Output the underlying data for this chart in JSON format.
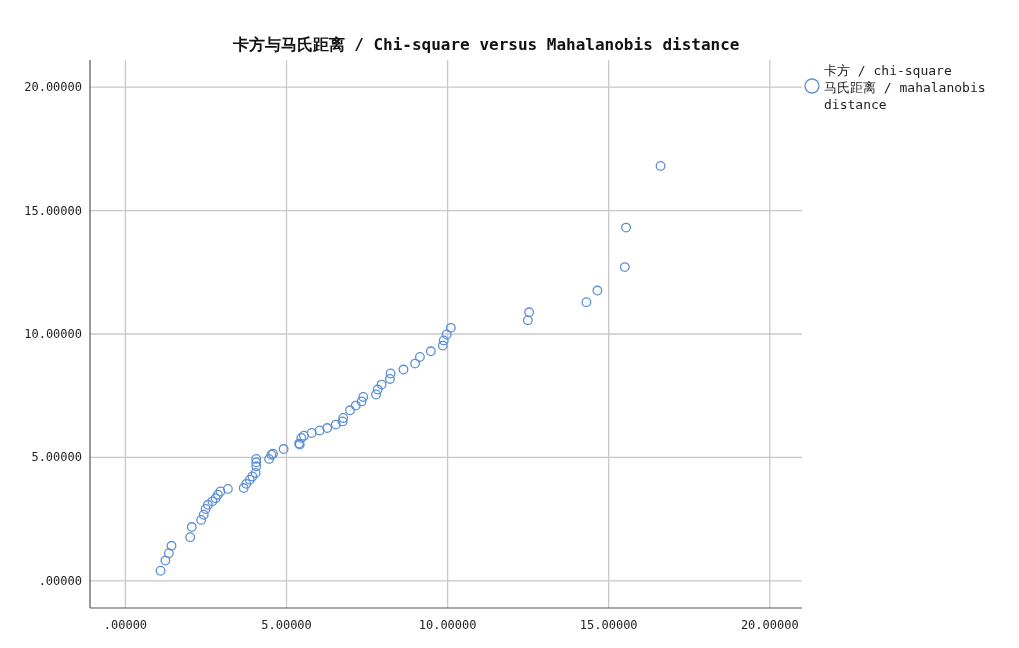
{
  "chart_data": {
    "type": "scatter",
    "title": "卡方与马氏距离 / Chi-square versus Mahalanobis distance",
    "x": [
      1.09,
      1.24,
      1.35,
      1.43,
      2.01,
      2.06,
      2.35,
      2.43,
      2.49,
      2.56,
      2.7,
      2.8,
      2.87,
      2.95,
      3.18,
      3.67,
      3.75,
      3.86,
      3.94,
      4.04,
      4.06,
      4.06,
      4.06,
      4.46,
      4.58,
      4.91,
      5.39,
      4.53,
      5.41,
      5.46,
      5.54,
      5.78,
      6.03,
      6.26,
      6.53,
      6.74,
      6.76,
      6.97,
      7.15,
      7.33,
      7.38,
      7.78,
      7.83,
      7.95,
      8.21,
      8.23,
      8.63,
      8.99,
      9.14,
      9.48,
      9.85,
      9.88,
      9.97,
      10.1,
      12.49,
      12.53,
      14.31,
      14.65,
      15.5,
      15.54,
      16.61
    ],
    "series": [
      {
        "name": "卡方 / chi-square 马氏距离 / mahalanobis distance",
        "color": "#5b8fd6",
        "values": [
          0.41,
          0.82,
          1.12,
          1.42,
          1.77,
          2.18,
          2.47,
          2.68,
          2.91,
          3.08,
          3.22,
          3.35,
          3.49,
          3.62,
          3.72,
          3.76,
          3.93,
          4.1,
          4.23,
          4.37,
          4.64,
          4.8,
          4.94,
          4.94,
          5.15,
          5.34,
          5.56,
          5.11,
          5.52,
          5.79,
          5.88,
          5.99,
          6.09,
          6.19,
          6.33,
          6.46,
          6.6,
          6.91,
          7.1,
          7.27,
          7.45,
          7.55,
          7.75,
          7.95,
          8.18,
          8.4,
          8.56,
          8.8,
          9.07,
          9.3,
          9.53,
          9.74,
          9.98,
          10.25,
          10.56,
          10.88,
          11.29,
          11.76,
          12.71,
          14.31,
          16.81
        ]
      }
    ],
    "xlim": [
      -1.1,
      21.0
    ],
    "ylim": [
      -1.1,
      21.1
    ],
    "xticks": [
      {
        "value": 0,
        "label": ".00000"
      },
      {
        "value": 5,
        "label": "5.00000"
      },
      {
        "value": 10,
        "label": "10.00000"
      },
      {
        "value": 15,
        "label": "15.00000"
      },
      {
        "value": 20,
        "label": "20.00000"
      }
    ],
    "yticks": [
      {
        "value": 0,
        "label": ".00000"
      },
      {
        "value": 5,
        "label": "5.00000"
      },
      {
        "value": 10,
        "label": "10.00000"
      },
      {
        "value": 15,
        "label": "15.00000"
      },
      {
        "value": 20,
        "label": "20.00000"
      }
    ],
    "grid": true,
    "legend": "top right",
    "marker": "circle"
  }
}
